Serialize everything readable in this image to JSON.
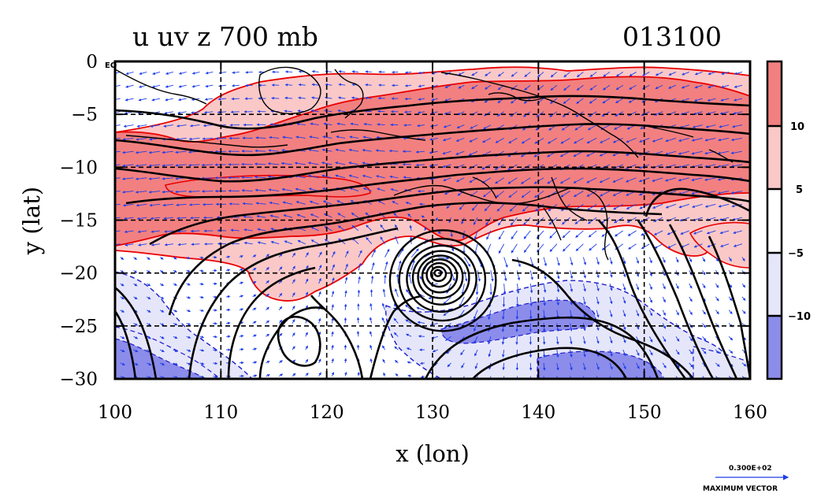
{
  "header": {
    "title_left": "u uv z 700 mb",
    "title_right": "013100"
  },
  "chart_data": {
    "type": "heatmap",
    "title": "u uv z 700 mb",
    "time_label": "013100",
    "xlabel": "x (lon)",
    "ylabel": "y (lat)",
    "xlim": [
      100,
      160
    ],
    "ylim": [
      -30,
      0
    ],
    "x_ticks": [
      100,
      110,
      120,
      130,
      140,
      150,
      160
    ],
    "y_ticks": [
      0,
      -5,
      -10,
      -15,
      -20,
      -25,
      -30
    ],
    "y_tick_labels": [
      "0",
      "−5",
      "−10",
      "−15",
      "−20",
      "−25",
      "−30"
    ],
    "y_top_suffix": "EQ",
    "grid": true,
    "colorbar": {
      "labels": [
        "10",
        "5",
        "−5",
        "−10"
      ],
      "levels": [
        -15,
        -10,
        -5,
        5,
        10,
        15
      ],
      "colors": [
        "#8c8ceb",
        "#e6e6fa",
        "#ffffff",
        "#fbc8c8",
        "#f28080"
      ]
    },
    "vector_legend": {
      "value_label": "0.300E+02",
      "caption": "MAXIMUM VECTOR"
    },
    "cyclone_center": {
      "lon": 130.5,
      "lat": -20.0
    },
    "colors": {
      "strong_easterly_fill": "#f28080",
      "weak_easterly_fill": "#fbc8c8",
      "westerly_fill": "#8c8ceb",
      "weak_westerly_fill": "#e6e6fa",
      "red_contour": "#e80000",
      "blue_contour": "#1a1acc",
      "vector": "#1e3ee8",
      "height_contour": "#000000"
    }
  }
}
